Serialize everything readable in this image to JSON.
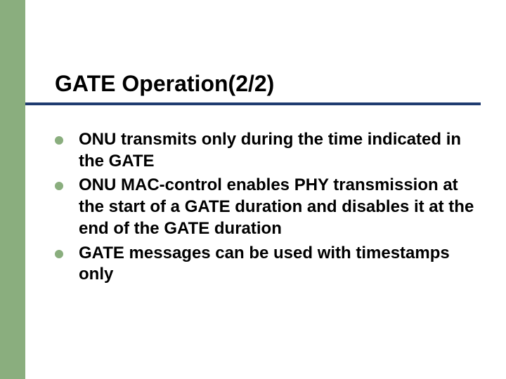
{
  "colors": {
    "sidebar": "#8aae7e",
    "underline": "#1f3b70",
    "bullet": "#8aae7e",
    "title": "#000000",
    "text": "#000000",
    "background": "#ffffff"
  },
  "title": "GATE Operation(2/2)",
  "bullets": [
    "ONU transmits only during the time indicated in the GATE",
    "ONU MAC-control enables PHY transmission at the start of a GATE duration and disables it at the end of the GATE duration",
    "GATE messages can be used with timestamps only"
  ]
}
